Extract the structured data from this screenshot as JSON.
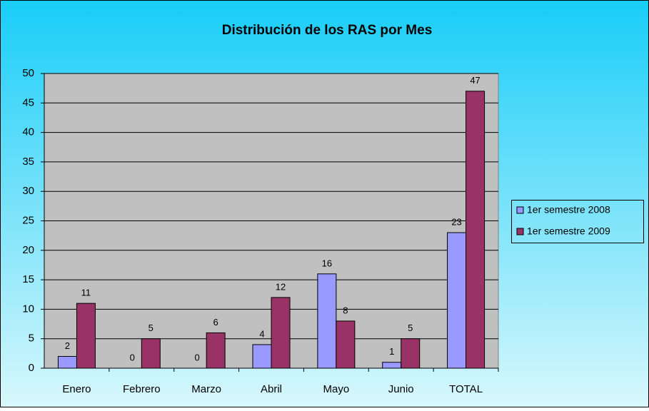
{
  "chart_data": {
    "type": "bar",
    "title": "Distribución de los RAS por Mes",
    "categories": [
      "Enero",
      "Febrero",
      "Marzo",
      "Abril",
      "Mayo",
      "Junio",
      "TOTAL"
    ],
    "series": [
      {
        "name": "1er semestre 2008",
        "color": "#9999ff",
        "values": [
          2,
          0,
          0,
          4,
          16,
          1,
          23
        ]
      },
      {
        "name": "1er semestre 2009",
        "color": "#993366",
        "values": [
          11,
          5,
          6,
          12,
          8,
          5,
          47
        ]
      }
    ],
    "ylim": [
      0,
      50
    ],
    "yticks": [
      0,
      5,
      10,
      15,
      20,
      25,
      30,
      35,
      40,
      45,
      50
    ],
    "grid": true,
    "legend": "right"
  }
}
